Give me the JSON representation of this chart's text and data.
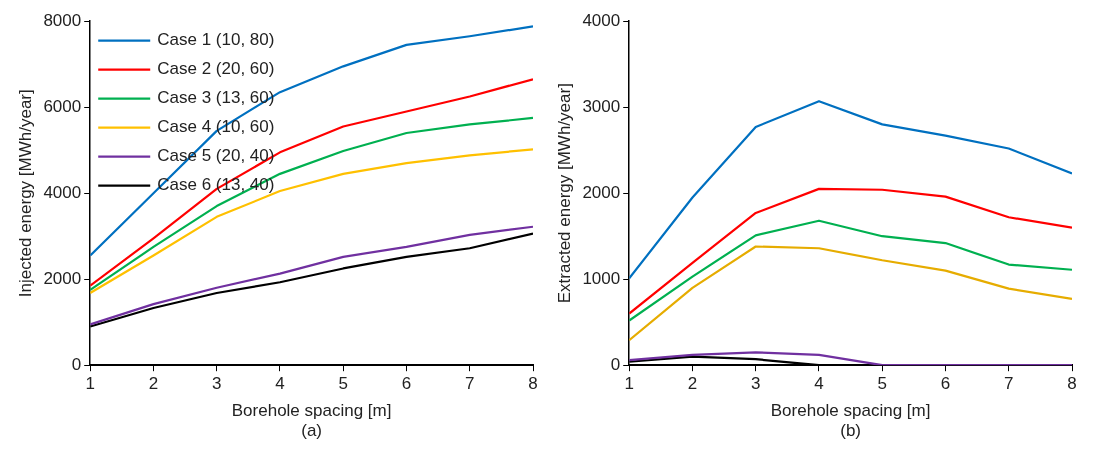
{
  "chart_data": [
    {
      "type": "line",
      "xlabel": "Borehole spacing [m]",
      "ylabel": "Injected energy [MWh/year]",
      "annotations": [
        "(a)"
      ],
      "x": [
        1,
        2,
        3,
        4,
        5,
        6,
        7,
        8
      ],
      "xlim": [
        1,
        8
      ],
      "xticks": [
        1,
        2,
        3,
        4,
        5,
        6,
        7,
        8
      ],
      "ylim": [
        0,
        8000
      ],
      "yticks": [
        0,
        2000,
        4000,
        6000,
        8000
      ],
      "grid": false,
      "legend": "top left",
      "marker": "none",
      "line_style": "solid",
      "series": [
        {
          "name": "Case 1 (10, 80)",
          "color": "#0070c0",
          "values": [
            2550,
            4000,
            5450,
            6350,
            6950,
            7450,
            7650,
            7880
          ]
        },
        {
          "name": "Case 2 (20, 60)",
          "color": "#ff0000",
          "values": [
            1850,
            2950,
            4100,
            4950,
            5550,
            5900,
            6250,
            6650
          ]
        },
        {
          "name": "Case 3 (13, 60)",
          "color": "#00b050",
          "values": [
            1750,
            2750,
            3700,
            4450,
            4980,
            5400,
            5600,
            5750
          ]
        },
        {
          "name": "Case 4 (10, 60)",
          "color": "#ffc000",
          "values": [
            1680,
            2550,
            3450,
            4050,
            4450,
            4700,
            4880,
            5020
          ]
        },
        {
          "name": "Case 5 (20, 40)",
          "color": "#7030a0",
          "values": [
            950,
            1420,
            1800,
            2130,
            2520,
            2750,
            3030,
            3220
          ]
        },
        {
          "name": "Case 6 (13, 40)",
          "color": "#000000",
          "values": [
            900,
            1330,
            1680,
            1930,
            2250,
            2520,
            2720,
            3060
          ]
        }
      ]
    },
    {
      "type": "line",
      "xlabel": "Borehole spacing [m]",
      "ylabel": "Extracted energy [MWh/year]",
      "annotations": [
        "(b)"
      ],
      "x": [
        1,
        2,
        3,
        4,
        5,
        6,
        7,
        8
      ],
      "xlim": [
        1,
        8
      ],
      "xticks": [
        1,
        2,
        3,
        4,
        5,
        6,
        7,
        8
      ],
      "ylim": [
        0,
        4000
      ],
      "yticks": [
        0,
        1000,
        2000,
        3000,
        4000
      ],
      "grid": false,
      "legend": false,
      "marker": "none",
      "line_style": "solid",
      "series": [
        {
          "color": "#0070c0",
          "values": [
            1010,
            1950,
            2770,
            3070,
            2800,
            2670,
            2520,
            2230
          ]
        },
        {
          "color": "#ff0000",
          "values": [
            600,
            1190,
            1770,
            2050,
            2040,
            1960,
            1720,
            1600
          ]
        },
        {
          "color": "#00b050",
          "values": [
            520,
            1030,
            1510,
            1680,
            1500,
            1420,
            1170,
            1110
          ]
        },
        {
          "color": "#e6ac00",
          "values": [
            290,
            900,
            1380,
            1360,
            1220,
            1100,
            890,
            770
          ]
        },
        {
          "color": "#7030a0",
          "values": [
            60,
            120,
            150,
            120,
            0,
            0,
            0,
            0
          ]
        },
        {
          "color": "#000000",
          "values": [
            40,
            100,
            70,
            0,
            0,
            0,
            0,
            0
          ]
        }
      ]
    }
  ]
}
